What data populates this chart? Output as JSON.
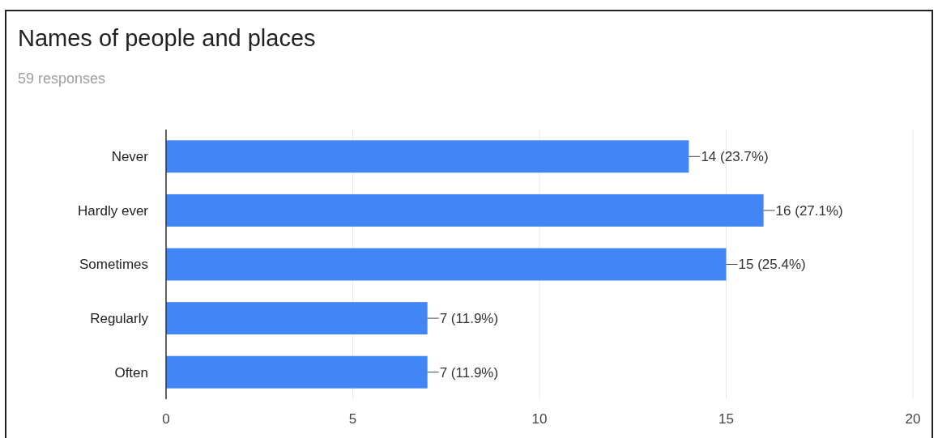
{
  "chart_data": {
    "type": "bar",
    "orientation": "horizontal",
    "title": "Names of people and places",
    "subtitle": "59 responses",
    "categories": [
      "Never",
      "Hardly ever",
      "Sometimes",
      "Regularly",
      "Often"
    ],
    "values": [
      14,
      16,
      15,
      7,
      7
    ],
    "value_labels": [
      "14 (23.7%)",
      "16 (27.1%)",
      "15 (25.4%)",
      "7 (11.9%)",
      "7 (11.9%)"
    ],
    "color": "#4285f4",
    "xlim": [
      0,
      20
    ],
    "xticks": [
      0,
      5,
      10,
      15,
      20
    ],
    "grid": "x"
  }
}
